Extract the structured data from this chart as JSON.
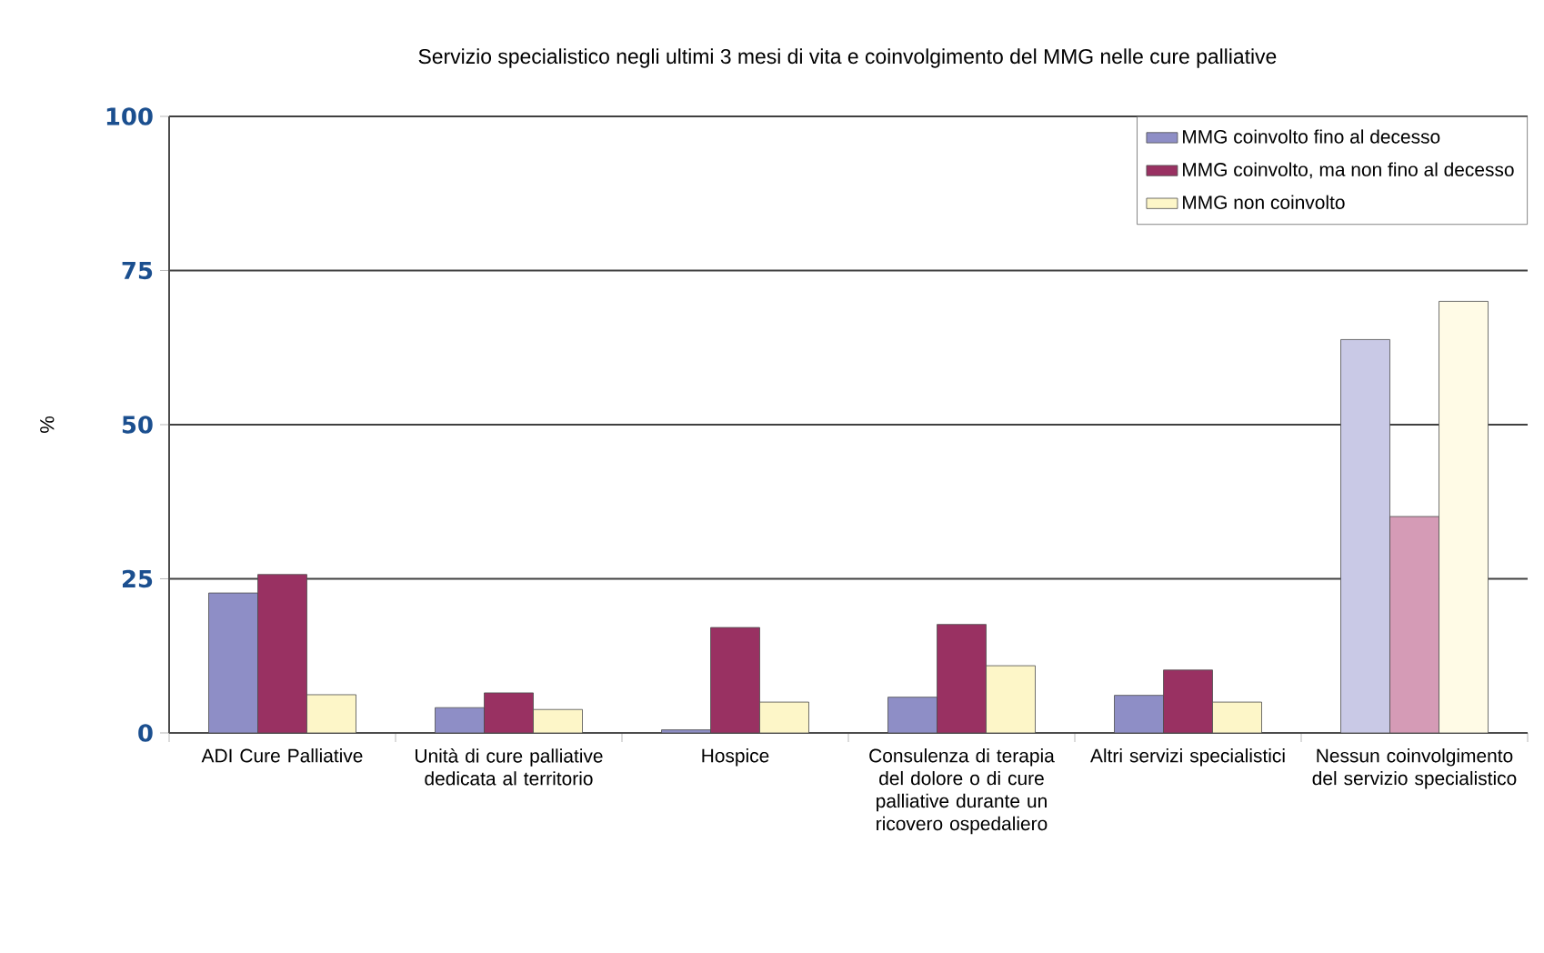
{
  "chart_data": {
    "type": "bar",
    "title": "Servizio specialistico negli ultimi 3 mesi di vita e coinvolgimento del MMG nelle cure palliative",
    "ylabel": "%",
    "categories": [
      "ADI Cure Palliative",
      "Unità di cure palliative dedicata al territorio",
      "Hospice",
      "Consulenza di terapia del dolore o di cure palliative durante un ricovero ospedaliero",
      "Altri servizi specialistici",
      "Nessun coinvolgimento del servizio specialistico"
    ],
    "series": [
      {
        "name": "MMG coinvolto fino al decesso",
        "color": "#8e8ec6",
        "colors": [
          "#8e8ec6",
          "#8e8ec6",
          "#8e8ec6",
          "#8e8ec6",
          "#8e8ec6",
          "#c9c9e6"
        ],
        "values": [
          22.7,
          4.1,
          0.5,
          5.8,
          6.1,
          63.8
        ]
      },
      {
        "name": "MMG coinvolto, ma non fino al decesso",
        "color": "#993162",
        "colors": [
          "#993162",
          "#993162",
          "#993162",
          "#993162",
          "#993162",
          "#d59bb6"
        ],
        "values": [
          25.7,
          6.5,
          17.1,
          17.6,
          10.2,
          35.1
        ]
      },
      {
        "name": "MMG non coinvolto",
        "color": "#fdf6c8",
        "colors": [
          "#fdf6c8",
          "#fdf6c8",
          "#fdf6c8",
          "#fdf6c8",
          "#fdf6c8",
          "#fffbe6"
        ],
        "values": [
          6.2,
          3.8,
          5.0,
          10.9,
          5.0,
          70.0
        ]
      }
    ],
    "ylim": [
      0,
      100
    ],
    "yticks": [
      0,
      25,
      50,
      75,
      100
    ],
    "grid": "y",
    "legend": "top right"
  }
}
